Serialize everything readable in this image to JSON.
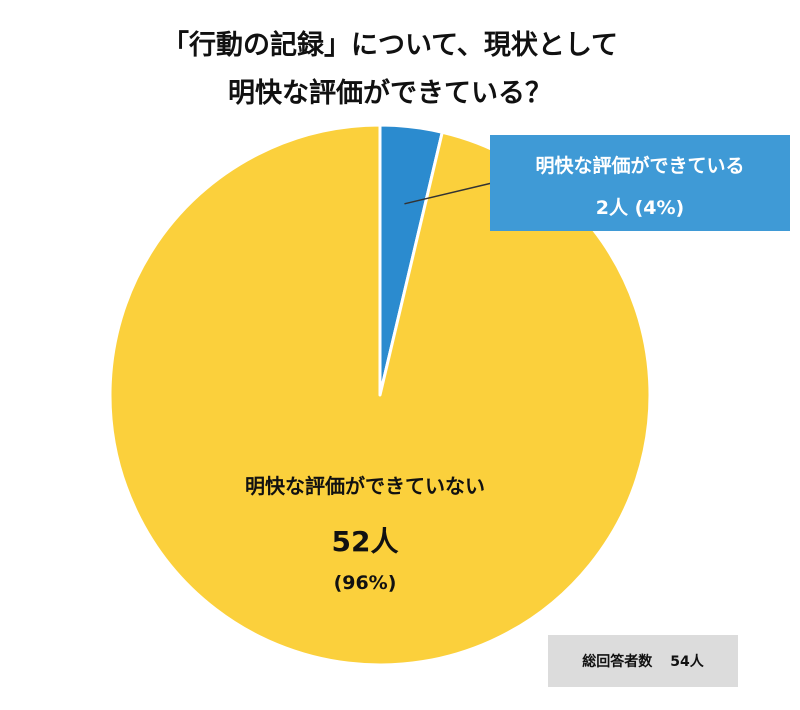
{
  "chart_data": {
    "type": "pie",
    "title_lines": [
      "「行動の記録」について、現状として",
      "明快な評価ができている？"
    ],
    "slices": [
      {
        "label": "明快な評価ができている",
        "value": 2,
        "count_label": "2人",
        "percent_label": "(4%)",
        "color": "#2b8bcf"
      },
      {
        "label": "明快な評価ができていない",
        "value": 52,
        "count_label": "52人",
        "percent_label": "(96%)",
        "color": "#fbd03c"
      }
    ],
    "callout_color": "#3f9ad6",
    "total": {
      "label": "総回答者数",
      "value": "54人"
    }
  }
}
